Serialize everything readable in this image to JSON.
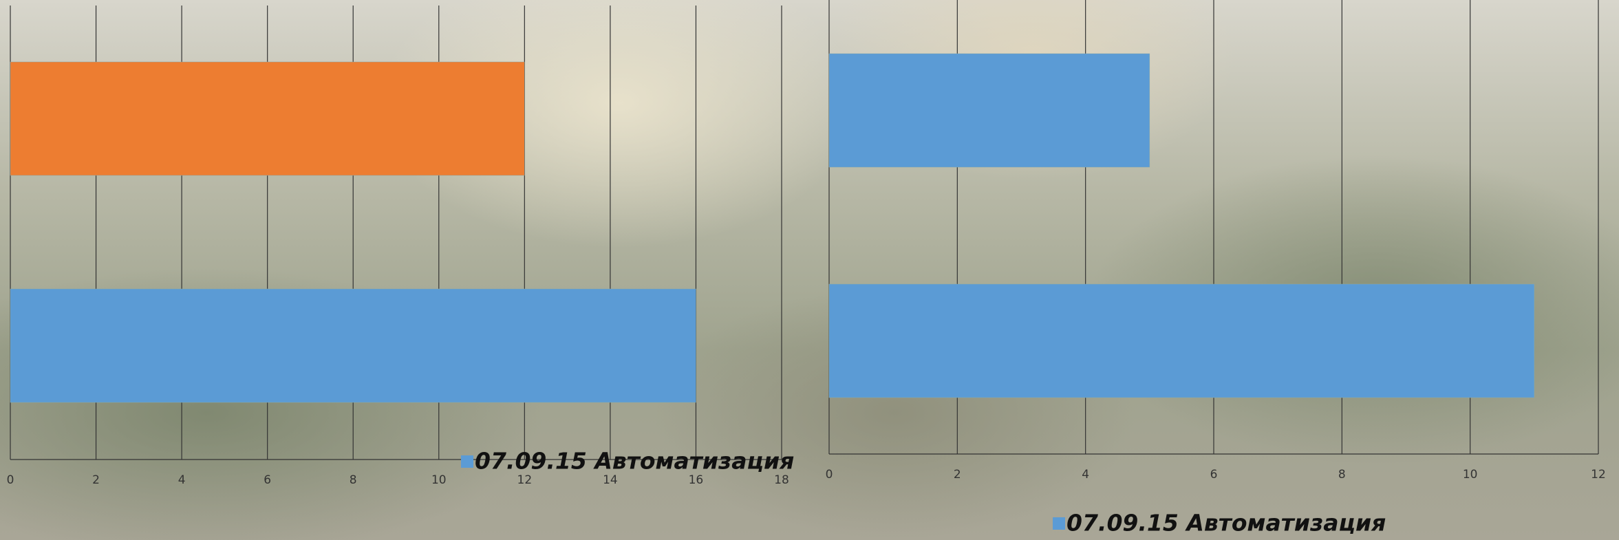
{
  "chart_data": [
    {
      "type": "bar",
      "orientation": "horizontal",
      "categories": [
        null,
        null
      ],
      "values": [
        16,
        12
      ],
      "colors": [
        "#5b9bd5",
        "#ed7d31"
      ],
      "xlim": [
        0,
        18
      ],
      "xticks": [
        0,
        2,
        4,
        6,
        8,
        10,
        12,
        14,
        16,
        18
      ],
      "grid": true,
      "legend": {
        "label": "07.09.15 Автоматизация",
        "color": "#5b9bd5"
      }
    },
    {
      "type": "bar",
      "orientation": "horizontal",
      "categories": [
        null,
        null
      ],
      "values": [
        11,
        5
      ],
      "colors": [
        "#5b9bd5",
        "#5b9bd5"
      ],
      "xlim": [
        0,
        12
      ],
      "xticks": [
        0,
        2,
        4,
        6,
        8,
        10,
        12
      ],
      "grid": true,
      "legend": {
        "label": "07.09.15 Автоматизация",
        "color": "#5b9bd5"
      }
    }
  ]
}
